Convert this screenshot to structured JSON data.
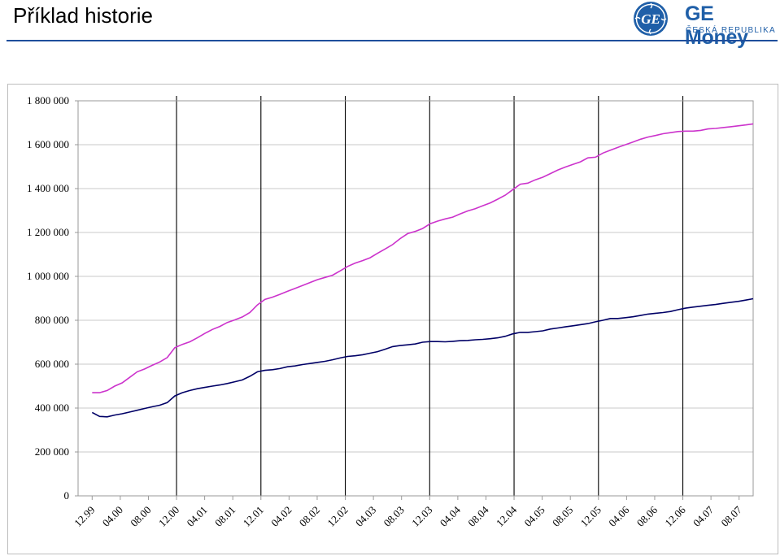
{
  "header": {
    "title": "Příklad historie",
    "brand_name": "GE Money",
    "brand_sub": "ČESKÁ REPUBLIKA",
    "logo_monogram": "GE",
    "brand_color": "#1f5fa8"
  },
  "chart_data": {
    "type": "line",
    "title": "",
    "xlabel": "",
    "ylabel": "",
    "ylim": [
      0,
      1800000
    ],
    "y_ticks": [
      0,
      200000,
      400000,
      600000,
      800000,
      1000000,
      1200000,
      1400000,
      1600000,
      1800000
    ],
    "y_tick_labels": [
      "0",
      "200 000",
      "400 000",
      "600 000",
      "800 000",
      "1 000 000",
      "1 200 000",
      "1 400 000",
      "1 600 000",
      "1 800 000"
    ],
    "x_tick_labels": [
      "12.99",
      "04.00",
      "08.00",
      "12.00",
      "04.01",
      "08.01",
      "12.01",
      "04.02",
      "08.02",
      "12.02",
      "04.03",
      "08.03",
      "12.03",
      "04.04",
      "08.04",
      "12.04",
      "04.05",
      "08.05",
      "12.05",
      "04.06",
      "08.06",
      "12.06",
      "04.07",
      "08.07"
    ],
    "year_end_markers": [
      "12.00",
      "12.01",
      "12.02",
      "12.03",
      "12.04",
      "12.05",
      "12.06"
    ],
    "grid": "horizontal",
    "legend": "none",
    "series": [
      {
        "color": "#cc33cc",
        "values": [
          470000,
          470000,
          480000,
          500000,
          515000,
          540000,
          565000,
          578000,
          595000,
          610000,
          630000,
          675000,
          690000,
          702000,
          720000,
          740000,
          758000,
          772000,
          790000,
          802000,
          815000,
          835000,
          870000,
          895000,
          905000,
          918000,
          932000,
          945000,
          958000,
          972000,
          985000,
          995000,
          1005000,
          1025000,
          1045000,
          1060000,
          1072000,
          1085000,
          1105000,
          1125000,
          1145000,
          1172000,
          1195000,
          1205000,
          1218000,
          1240000,
          1252000,
          1262000,
          1270000,
          1285000,
          1298000,
          1308000,
          1322000,
          1335000,
          1352000,
          1370000,
          1395000,
          1420000,
          1425000,
          1440000,
          1452000,
          1468000,
          1485000,
          1498000,
          1510000,
          1522000,
          1540000,
          1543000,
          1562000,
          1575000,
          1588000,
          1600000,
          1612000,
          1625000,
          1635000,
          1642000,
          1650000,
          1655000,
          1660000,
          1662000,
          1662000,
          1665000,
          1672000,
          1674000,
          1678000,
          1682000,
          1686000,
          1690000,
          1695000
        ]
      },
      {
        "color": "#000066",
        "values": [
          380000,
          362000,
          360000,
          368000,
          374000,
          382000,
          390000,
          398000,
          406000,
          413000,
          425000,
          455000,
          470000,
          480000,
          488000,
          494000,
          500000,
          505000,
          512000,
          520000,
          528000,
          545000,
          565000,
          572000,
          575000,
          580000,
          588000,
          592000,
          598000,
          603000,
          608000,
          613000,
          620000,
          628000,
          635000,
          638000,
          643000,
          650000,
          657000,
          668000,
          680000,
          685000,
          688000,
          692000,
          700000,
          703000,
          703000,
          702000,
          704000,
          707000,
          708000,
          711000,
          713000,
          716000,
          720000,
          727000,
          738000,
          745000,
          745000,
          748000,
          752000,
          760000,
          765000,
          770000,
          775000,
          780000,
          785000,
          793000,
          800000,
          808000,
          808000,
          812000,
          816000,
          822000,
          828000,
          832000,
          835000,
          840000,
          848000,
          855000,
          860000,
          864000,
          868000,
          872000,
          877000,
          882000,
          886000,
          892000,
          898000
        ]
      }
    ]
  }
}
